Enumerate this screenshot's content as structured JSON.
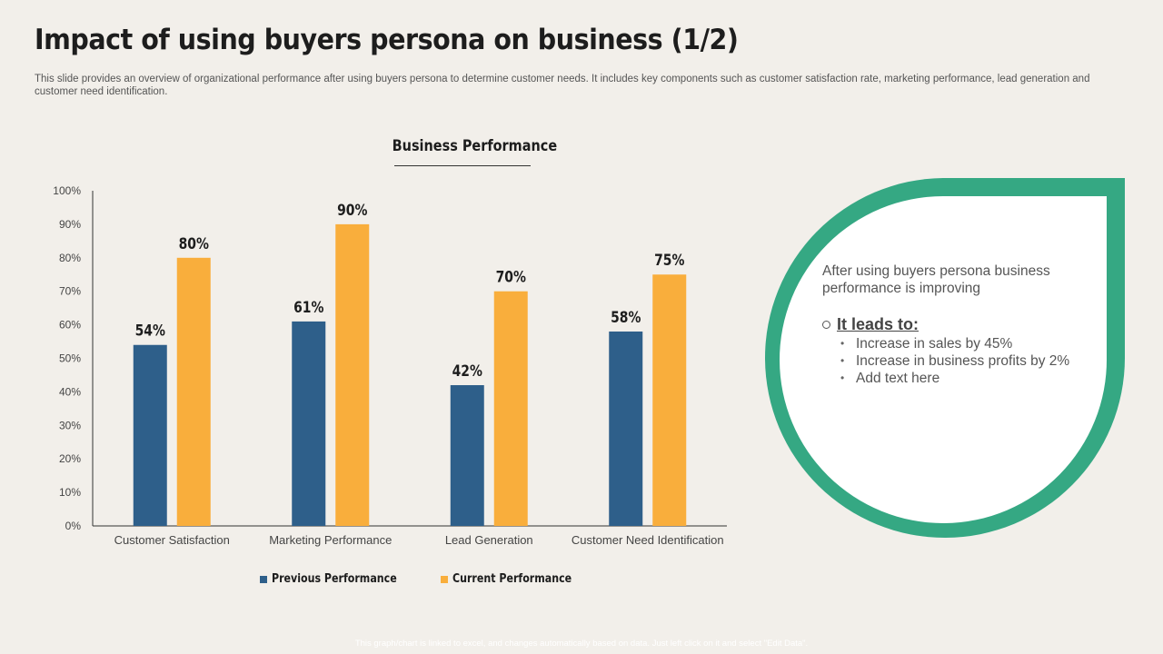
{
  "slide": {
    "title": "Impact of using buyers persona on business (1/2)",
    "subtitle": "This slide provides an overview of organizational performance after using buyers persona to determine customer needs. It includes key components such as customer satisfaction rate, marketing performance, lead generation and customer need identification.",
    "footer_note": "This graph/chart is linked to excel, and changes automatically based on data. Just left click on it and select \"Edit Data\"."
  },
  "chart_data": {
    "type": "bar",
    "title": "Business Performance",
    "categories": [
      "Customer Satisfaction",
      "Marketing Performance",
      "Lead Generation",
      "Customer Need Identification"
    ],
    "series": [
      {
        "name": "Previous Performance",
        "values": [
          54,
          61,
          42,
          58
        ],
        "labels": [
          "54%",
          "61%",
          "42%",
          "58%"
        ],
        "color": "#2e5f8a"
      },
      {
        "name": "Current Performance",
        "values": [
          80,
          90,
          70,
          75
        ],
        "labels": [
          "80%",
          "90%",
          "70%",
          "75%"
        ],
        "color": "#f9ae3c"
      }
    ],
    "ylim": [
      0,
      100
    ],
    "yticks": [
      "0%",
      "10%",
      "20%",
      "30%",
      "40%",
      "50%",
      "60%",
      "70%",
      "80%",
      "90%",
      "100%"
    ],
    "xlabel": "",
    "ylabel": "",
    "grid": false,
    "legend_position": "bottom"
  },
  "callout": {
    "intro": "After using buyers persona business performance is improving",
    "heading": "It leads to:",
    "bullets": [
      "Increase in sales by 45%",
      "Increase in business profits by 2%",
      "Add text here"
    ],
    "accent_color": "#35a883"
  }
}
